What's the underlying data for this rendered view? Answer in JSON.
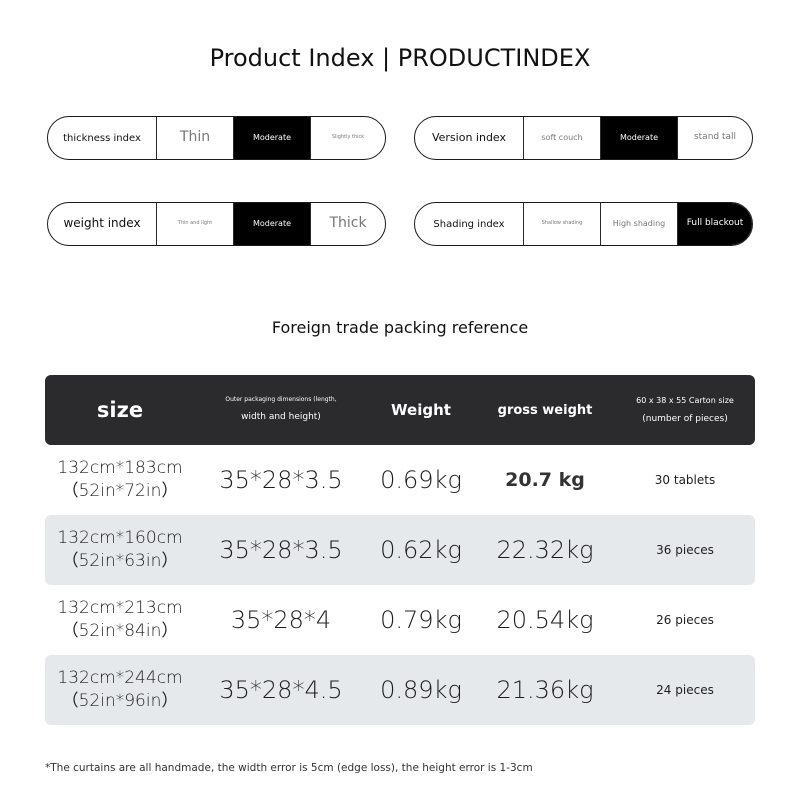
{
  "title": "Product Index | PRODUCTINDEX",
  "indexes": [
    {
      "label": "thickness index",
      "options": [
        "Thin",
        "Moderate",
        "Slightly thick"
      ],
      "selected": 1
    },
    {
      "label": "Version index",
      "options": [
        "soft couch",
        "Moderate",
        "stand tall"
      ],
      "selected": 1
    },
    {
      "label": "weight index",
      "options": [
        "Thin and light",
        "Moderate",
        "Thick"
      ],
      "selected": 1
    },
    {
      "label": "Shading index",
      "options": [
        "Shallow shading",
        "High shading",
        "Full blackout"
      ],
      "selected": 2
    }
  ],
  "packing": {
    "title": "Foreign trade packing reference",
    "headers": {
      "size": "size",
      "outer_line1": "Outer packaging dimensions (length,",
      "outer_line2": "width and height)",
      "weight": "Weight",
      "gross": "gross weight",
      "carton_line1": "60 x 38 x 55 Carton size",
      "carton_line2": "(number of pieces)"
    },
    "rows": [
      {
        "size_cm": "132cm*183cm",
        "size_in": "（52in*72in）",
        "outer": "35*28*3.5",
        "weight": "0.69kg",
        "gross": "20.7 kg",
        "count": "30 tablets"
      },
      {
        "size_cm": "132cm*160cm",
        "size_in": "（52in*63in）",
        "outer": "35*28*3.5",
        "weight": "0.62kg",
        "gross": "22.32kg",
        "count": "36 pieces"
      },
      {
        "size_cm": "132cm*213cm",
        "size_in": "（52in*84in）",
        "outer": "35*28*4",
        "weight": "0.79kg",
        "gross": "20.54kg",
        "count": "26 pieces"
      },
      {
        "size_cm": "132cm*244cm",
        "size_in": "（52in*96in）",
        "outer": "35*28*4.5",
        "weight": "0.89kg",
        "gross": "21.36kg",
        "count": "24 pieces"
      }
    ]
  },
  "footnote": "*The curtains are all handmade, the width error is 5cm (edge loss), the height error is 1-3cm"
}
